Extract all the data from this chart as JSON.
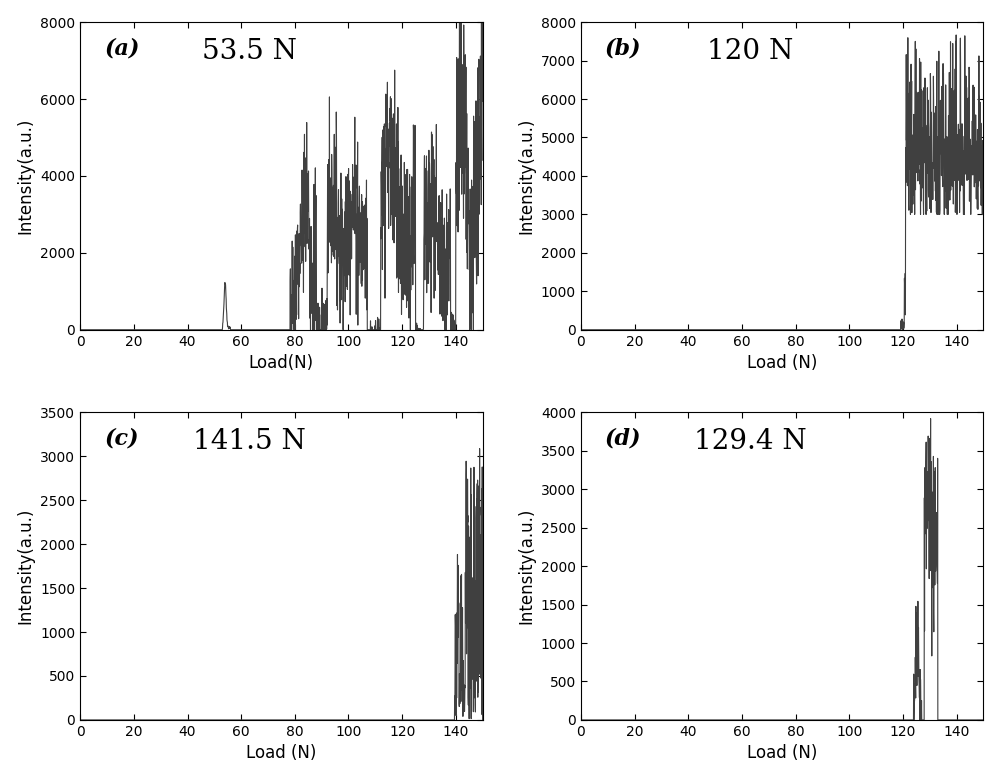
{
  "panels": [
    {
      "label": "(a)",
      "title": "53.5 N",
      "xlabel": "Load(N)",
      "ylabel": "Intensity(a.u.)",
      "ylim": [
        0,
        8000
      ],
      "yticks": [
        0,
        2000,
        4000,
        6000,
        8000
      ],
      "xlim": [
        0,
        150
      ],
      "xticks": [
        0,
        20,
        40,
        60,
        80,
        100,
        120,
        140
      ],
      "pattern": "a"
    },
    {
      "label": "(b)",
      "title": "120 N",
      "xlabel": "Load (N)",
      "ylabel": "Intensity(a.u.)",
      "ylim": [
        0,
        8000
      ],
      "yticks": [
        0,
        1000,
        2000,
        3000,
        4000,
        5000,
        6000,
        7000,
        8000
      ],
      "xlim": [
        0,
        150
      ],
      "xticks": [
        0,
        20,
        40,
        60,
        80,
        100,
        120,
        140
      ],
      "pattern": "b"
    },
    {
      "label": "(c)",
      "title": "141.5 N",
      "xlabel": "Load (N)",
      "ylabel": "Intensity(a.u.)",
      "ylim": [
        0,
        3500
      ],
      "yticks": [
        0,
        500,
        1000,
        1500,
        2000,
        2500,
        3000,
        3500
      ],
      "xlim": [
        0,
        150
      ],
      "xticks": [
        0,
        20,
        40,
        60,
        80,
        100,
        120,
        140
      ],
      "pattern": "c"
    },
    {
      "label": "(d)",
      "title": "129.4 N",
      "xlabel": "Load (N)",
      "ylabel": "Intensity(a.u.)",
      "ylim": [
        0,
        4000
      ],
      "yticks": [
        0,
        500,
        1000,
        1500,
        2000,
        2500,
        3000,
        3500,
        4000
      ],
      "xlim": [
        0,
        150
      ],
      "xticks": [
        0,
        20,
        40,
        60,
        80,
        100,
        120,
        140
      ],
      "pattern": "d"
    }
  ],
  "line_color": "#404040",
  "line_width": 0.8,
  "background_color": "#ffffff",
  "label_fontsize": 16,
  "title_fontsize": 20,
  "axis_fontsize": 12,
  "tick_fontsize": 10
}
